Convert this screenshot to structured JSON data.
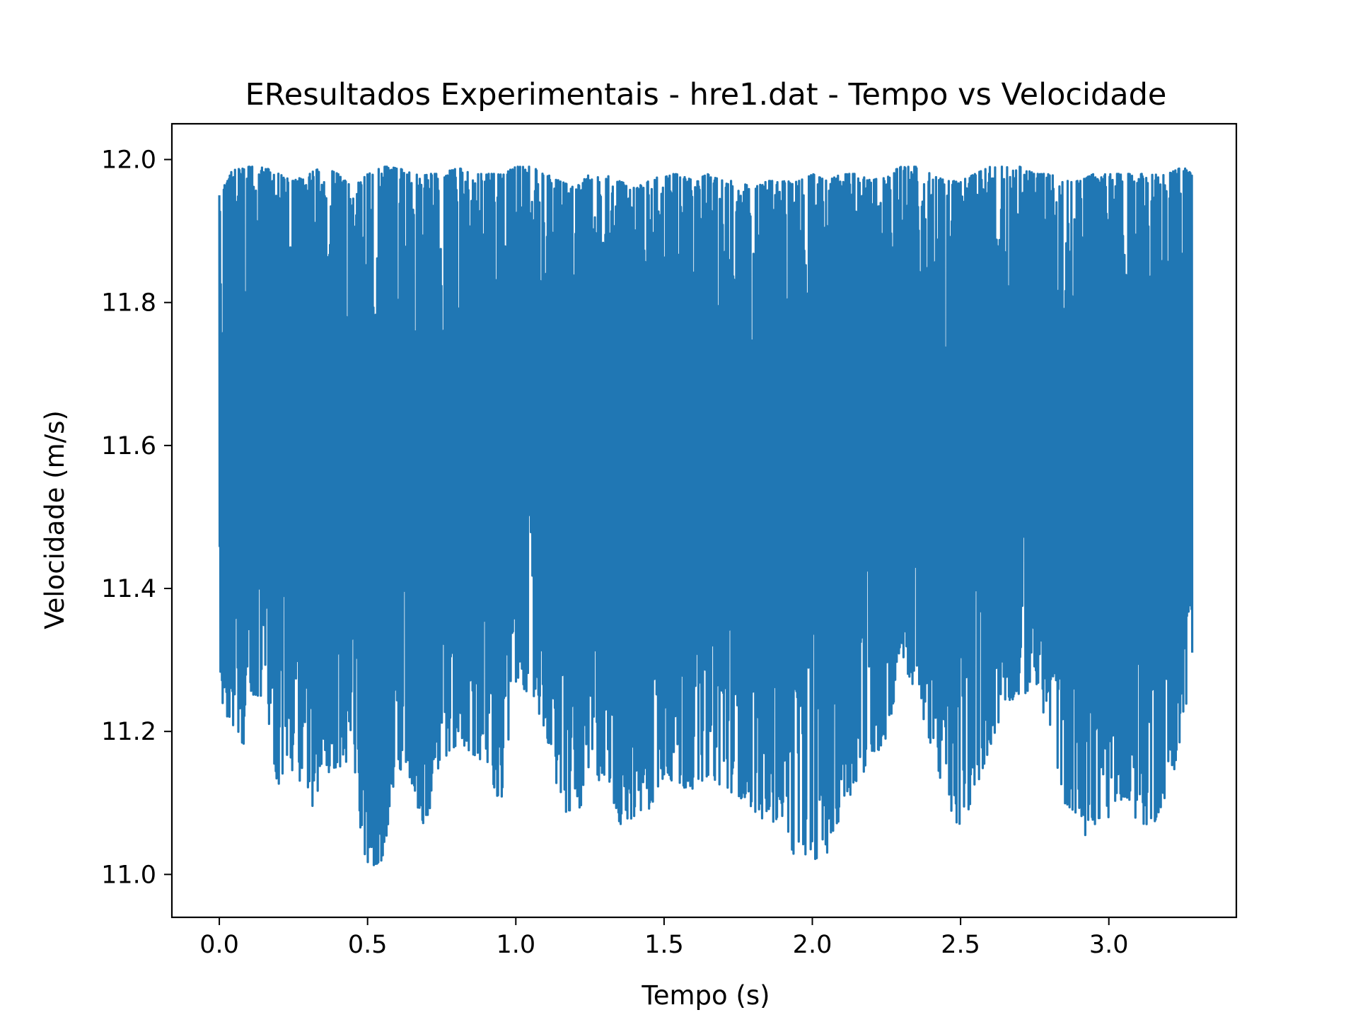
{
  "chart_data": {
    "type": "line",
    "title": "EResultados Experimentais - hre1.dat - Tempo vs Velocidade",
    "xlabel": "Tempo (s)",
    "ylabel": "Velocidade (m/s)",
    "xlim": [
      -0.16,
      3.43
    ],
    "ylim": [
      10.94,
      12.05
    ],
    "x_ticks": [
      0.0,
      0.5,
      1.0,
      1.5,
      2.0,
      2.5,
      3.0
    ],
    "x_tick_labels": [
      "0.0",
      "0.5",
      "1.0",
      "1.5",
      "2.0",
      "2.5",
      "3.0"
    ],
    "y_ticks": [
      11.0,
      11.2,
      11.4,
      11.6,
      11.8,
      12.0
    ],
    "y_tick_labels": [
      "11.0",
      "11.2",
      "11.4",
      "11.6",
      "11.8",
      "12.0"
    ],
    "grid": false,
    "legend": "none",
    "series": [
      {
        "color": "#2077b4",
        "x_range": [
          0.0,
          3.28
        ],
        "upper_envelope": [
          [
            0.0,
            11.95
          ],
          [
            0.05,
            11.99
          ],
          [
            0.1,
            11.99
          ],
          [
            0.15,
            11.99
          ],
          [
            0.2,
            11.98
          ],
          [
            0.25,
            11.97
          ],
          [
            0.3,
            11.98
          ],
          [
            0.35,
            11.99
          ],
          [
            0.4,
            11.98
          ],
          [
            0.45,
            11.96
          ],
          [
            0.5,
            11.98
          ],
          [
            0.55,
            11.99
          ],
          [
            0.6,
            11.99
          ],
          [
            0.65,
            11.98
          ],
          [
            0.7,
            11.98
          ],
          [
            0.75,
            11.98
          ],
          [
            0.8,
            11.99
          ],
          [
            0.85,
            11.98
          ],
          [
            0.9,
            11.98
          ],
          [
            0.95,
            11.98
          ],
          [
            1.0,
            11.99
          ],
          [
            1.05,
            11.99
          ],
          [
            1.1,
            11.98
          ],
          [
            1.15,
            11.97
          ],
          [
            1.2,
            11.96
          ],
          [
            1.25,
            11.98
          ],
          [
            1.3,
            11.98
          ],
          [
            1.35,
            11.97
          ],
          [
            1.4,
            11.96
          ],
          [
            1.45,
            11.97
          ],
          [
            1.5,
            11.98
          ],
          [
            1.55,
            11.98
          ],
          [
            1.6,
            11.97
          ],
          [
            1.65,
            11.98
          ],
          [
            1.7,
            11.97
          ],
          [
            1.75,
            11.97
          ],
          [
            1.8,
            11.96
          ],
          [
            1.85,
            11.97
          ],
          [
            1.9,
            11.97
          ],
          [
            1.95,
            11.97
          ],
          [
            2.0,
            11.98
          ],
          [
            2.05,
            11.97
          ],
          [
            2.1,
            11.98
          ],
          [
            2.15,
            11.98
          ],
          [
            2.2,
            11.97
          ],
          [
            2.25,
            11.98
          ],
          [
            2.3,
            11.99
          ],
          [
            2.35,
            11.99
          ],
          [
            2.4,
            11.98
          ],
          [
            2.45,
            11.97
          ],
          [
            2.5,
            11.97
          ],
          [
            2.55,
            11.98
          ],
          [
            2.6,
            11.99
          ],
          [
            2.65,
            11.99
          ],
          [
            2.7,
            11.99
          ],
          [
            2.75,
            11.98
          ],
          [
            2.8,
            11.98
          ],
          [
            2.85,
            11.97
          ],
          [
            2.9,
            11.97
          ],
          [
            2.95,
            11.98
          ],
          [
            3.0,
            11.98
          ],
          [
            3.05,
            11.98
          ],
          [
            3.1,
            11.98
          ],
          [
            3.15,
            11.98
          ],
          [
            3.2,
            11.98
          ],
          [
            3.25,
            11.99
          ],
          [
            3.28,
            11.98
          ]
        ],
        "lower_envelope": [
          [
            0.0,
            11.28
          ],
          [
            0.02,
            11.2
          ],
          [
            0.05,
            11.21
          ],
          [
            0.08,
            11.18
          ],
          [
            0.1,
            11.25
          ],
          [
            0.15,
            11.25
          ],
          [
            0.2,
            11.11
          ],
          [
            0.25,
            11.15
          ],
          [
            0.3,
            11.08
          ],
          [
            0.35,
            11.14
          ],
          [
            0.4,
            11.14
          ],
          [
            0.45,
            11.12
          ],
          [
            0.48,
            11.03
          ],
          [
            0.51,
            11.01
          ],
          [
            0.55,
            11.02
          ],
          [
            0.6,
            11.15
          ],
          [
            0.65,
            11.12
          ],
          [
            0.69,
            11.06
          ],
          [
            0.75,
            11.16
          ],
          [
            0.8,
            11.18
          ],
          [
            0.85,
            11.17
          ],
          [
            0.9,
            11.15
          ],
          [
            0.95,
            11.09
          ],
          [
            1.0,
            11.27
          ],
          [
            1.05,
            11.25
          ],
          [
            1.1,
            11.2
          ],
          [
            1.15,
            11.09
          ],
          [
            1.2,
            11.08
          ],
          [
            1.25,
            11.12
          ],
          [
            1.3,
            11.14
          ],
          [
            1.35,
            11.07
          ],
          [
            1.4,
            11.08
          ],
          [
            1.45,
            11.09
          ],
          [
            1.5,
            11.14
          ],
          [
            1.55,
            11.12
          ],
          [
            1.6,
            11.12
          ],
          [
            1.65,
            11.14
          ],
          [
            1.7,
            11.12
          ],
          [
            1.75,
            11.11
          ],
          [
            1.8,
            11.09
          ],
          [
            1.85,
            11.07
          ],
          [
            1.9,
            11.08
          ],
          [
            1.94,
            11.02
          ],
          [
            1.97,
            11.03
          ],
          [
            2.0,
            11.02
          ],
          [
            2.05,
            11.03
          ],
          [
            2.1,
            11.09
          ],
          [
            2.15,
            11.13
          ],
          [
            2.2,
            11.16
          ],
          [
            2.25,
            11.19
          ],
          [
            2.3,
            11.3
          ],
          [
            2.35,
            11.25
          ],
          [
            2.4,
            11.18
          ],
          [
            2.45,
            11.1
          ],
          [
            2.5,
            11.06
          ],
          [
            2.55,
            11.12
          ],
          [
            2.6,
            11.18
          ],
          [
            2.65,
            11.24
          ],
          [
            2.7,
            11.25
          ],
          [
            2.75,
            11.26
          ],
          [
            2.8,
            11.2
          ],
          [
            2.85,
            11.1
          ],
          [
            2.9,
            11.08
          ],
          [
            2.92,
            10.99
          ],
          [
            2.95,
            11.07
          ],
          [
            3.0,
            11.08
          ],
          [
            3.05,
            11.11
          ],
          [
            3.1,
            11.07
          ],
          [
            3.15,
            11.07
          ],
          [
            3.2,
            11.12
          ],
          [
            3.25,
            11.19
          ],
          [
            3.28,
            11.3
          ]
        ]
      }
    ]
  }
}
